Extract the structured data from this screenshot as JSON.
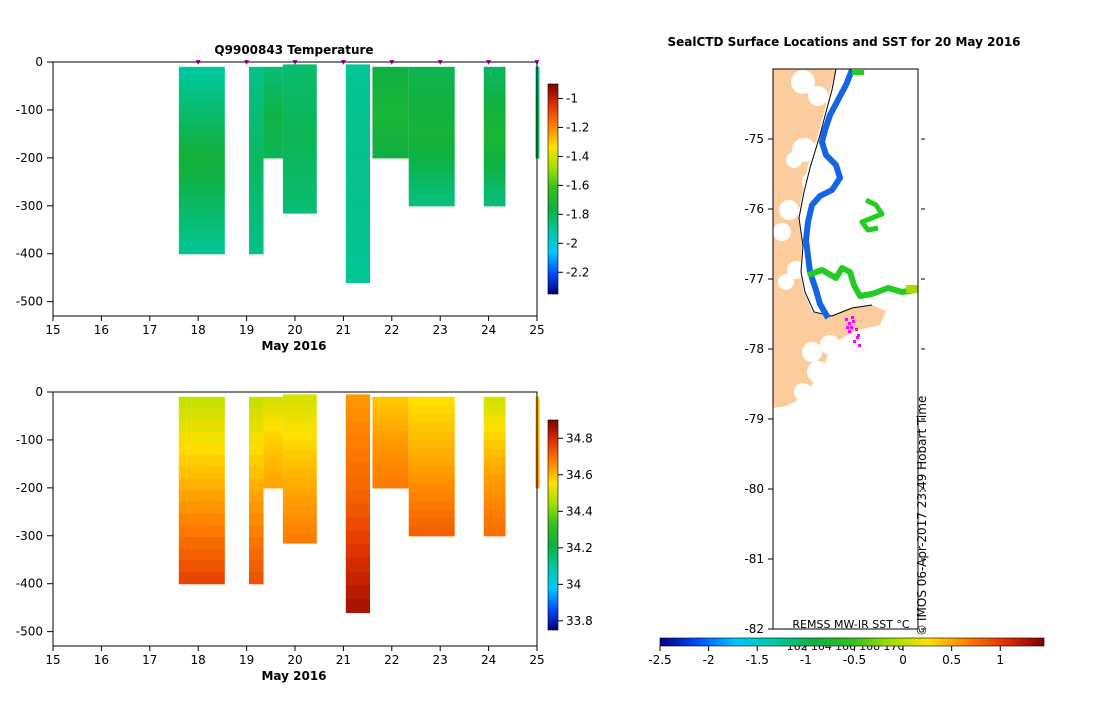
{
  "chart_data": [
    {
      "type": "heatmap",
      "title": "Q9900843  Temperature",
      "xlabel": "May 2016",
      "ylabel": "",
      "x_ticks": [
        "15",
        "16",
        "17",
        "18",
        "19",
        "20",
        "21",
        "22",
        "23",
        "24",
        "25"
      ],
      "y_ticks": [
        "0",
        "-100",
        "-200",
        "-300",
        "-400",
        "-500"
      ],
      "xlim": [
        15,
        25
      ],
      "ylim": [
        -530,
        0
      ],
      "colorbar": {
        "min": -2.35,
        "max": -0.9,
        "ticks": [
          "-1",
          "-1.2",
          "-1.4",
          "-1.6",
          "-1.8",
          "-2",
          "-2.2"
        ],
        "colors": [
          "#000080",
          "#0050ff",
          "#00c8ff",
          "#00c8a0",
          "#10b040",
          "#30c020",
          "#a0e000",
          "#ffe000",
          "#ff8000",
          "#e03000",
          "#800000"
        ]
      },
      "profile_markers_x": [
        18,
        19,
        20,
        21,
        22,
        23,
        24,
        25
      ],
      "profiles": [
        {
          "x0": 17.6,
          "x1": 18.55,
          "min_depth": -10,
          "max_depth": -400,
          "value_top": -1.92,
          "value_mid": -1.75,
          "value_bottom": -1.9
        },
        {
          "x0": 19.05,
          "x1": 19.35,
          "min_depth": -10,
          "max_depth": -400,
          "value_top": -1.88,
          "value_mid": -1.82,
          "value_bottom": -1.88
        },
        {
          "x0": 19.35,
          "x1": 19.75,
          "min_depth": -10,
          "max_depth": -200,
          "value_top": -1.85,
          "value_mid": -1.78,
          "value_bottom": -1.8
        },
        {
          "x0": 19.75,
          "x1": 20.45,
          "min_depth": -5,
          "max_depth": -315,
          "value_top": -1.84,
          "value_mid": -1.8,
          "value_bottom": -1.85
        },
        {
          "x0": 21.05,
          "x1": 21.55,
          "min_depth": -5,
          "max_depth": -460,
          "value_top": -1.9,
          "value_mid": -1.88,
          "value_bottom": -1.9
        },
        {
          "x0": 21.6,
          "x1": 22.35,
          "min_depth": -10,
          "max_depth": -200,
          "value_top": -1.78,
          "value_mid": -1.72,
          "value_bottom": -1.78
        },
        {
          "x0": 22.35,
          "x1": 23.3,
          "min_depth": -10,
          "max_depth": -300,
          "value_top": -1.8,
          "value_mid": -1.74,
          "value_bottom": -1.87
        },
        {
          "x0": 23.9,
          "x1": 24.35,
          "min_depth": -10,
          "max_depth": -300,
          "value_top": -1.82,
          "value_mid": -1.72,
          "value_bottom": -1.86
        },
        {
          "x0": 24.97,
          "x1": 25.05,
          "min_depth": -10,
          "max_depth": -200,
          "value_top": -1.9,
          "value_mid": -1.8,
          "value_bottom": -1.82
        }
      ]
    },
    {
      "type": "heatmap",
      "title": "",
      "xlabel": "May 2016",
      "ylabel": "",
      "x_ticks": [
        "15",
        "16",
        "17",
        "18",
        "19",
        "20",
        "21",
        "22",
        "23",
        "24",
        "25"
      ],
      "y_ticks": [
        "0",
        "-100",
        "-200",
        "-300",
        "-400",
        "-500"
      ],
      "xlim": [
        15,
        25
      ],
      "ylim": [
        -530,
        0
      ],
      "colorbar": {
        "min": 33.75,
        "max": 34.9,
        "ticks": [
          "34.8",
          "34.6",
          "34.4",
          "34.2",
          "34",
          "33.8"
        ],
        "colors": [
          "#000080",
          "#0050ff",
          "#00c8ff",
          "#00c8a0",
          "#10b040",
          "#30c020",
          "#a0e000",
          "#ffe000",
          "#ff8000",
          "#e03000",
          "#800000"
        ]
      },
      "profiles": [
        {
          "x0": 17.6,
          "x1": 18.55,
          "min_depth": -10,
          "max_depth": -400,
          "value_top": 34.48,
          "value_mid": 34.62,
          "value_bottom": 34.76
        },
        {
          "x0": 19.05,
          "x1": 19.35,
          "min_depth": -10,
          "max_depth": -400,
          "value_top": 34.48,
          "value_mid": 34.62,
          "value_bottom": 34.74
        },
        {
          "x0": 19.35,
          "x1": 19.75,
          "min_depth": -10,
          "max_depth": -200,
          "value_top": 34.5,
          "value_mid": 34.58,
          "value_bottom": 34.63
        },
        {
          "x0": 19.75,
          "x1": 20.45,
          "min_depth": -5,
          "max_depth": -315,
          "value_top": 34.5,
          "value_mid": 34.6,
          "value_bottom": 34.68
        },
        {
          "x0": 21.05,
          "x1": 21.55,
          "min_depth": -5,
          "max_depth": -460,
          "value_top": 34.64,
          "value_mid": 34.72,
          "value_bottom": 34.86
        },
        {
          "x0": 21.6,
          "x1": 22.35,
          "min_depth": -10,
          "max_depth": -200,
          "value_top": 34.58,
          "value_mid": 34.64,
          "value_bottom": 34.68
        },
        {
          "x0": 22.35,
          "x1": 23.3,
          "min_depth": -10,
          "max_depth": -300,
          "value_top": 34.55,
          "value_mid": 34.63,
          "value_bottom": 34.72
        },
        {
          "x0": 23.9,
          "x1": 24.35,
          "min_depth": -10,
          "max_depth": -300,
          "value_top": 34.5,
          "value_mid": 34.62,
          "value_bottom": 34.7
        },
        {
          "x0": 24.97,
          "x1": 25.05,
          "min_depth": -10,
          "max_depth": -200,
          "value_top": 34.6,
          "value_mid": 34.63,
          "value_bottom": 34.66
        }
      ]
    },
    {
      "type": "map",
      "title": "SealCTD Surface Locations and SST for 20 May 2016",
      "y_ticks": [
        "-75",
        "-76",
        "-77",
        "-78",
        "-79",
        "-80",
        "-81",
        "-82"
      ],
      "x_ticks": [
        "162",
        "164",
        "166",
        "168",
        "170"
      ],
      "ylim": [
        -82,
        -74
      ],
      "xlim": [
        160,
        172
      ],
      "land_color": "#fccc9c",
      "track_color": "#ff00ff",
      "colorbar": {
        "label": "REMSS MW-IR SST °C",
        "min": -2.5,
        "max": 1.45,
        "ticks": [
          "-2.5",
          "-2",
          "-1.5",
          "-1",
          "-0.5",
          "0",
          "0.5",
          "1"
        ],
        "colors": [
          "#000080",
          "#0050ff",
          "#00c8ff",
          "#00c8a0",
          "#10b040",
          "#30c020",
          "#a0e000",
          "#ffe000",
          "#ff8000",
          "#e03000",
          "#800000"
        ]
      },
      "sst_color_nearshore": "#1464e6",
      "sst_color_offshore": "#22cc22",
      "credit": "IMOS 06-Apr-2017 23:49 Hobart Time",
      "credit_symbol": "©"
    }
  ]
}
